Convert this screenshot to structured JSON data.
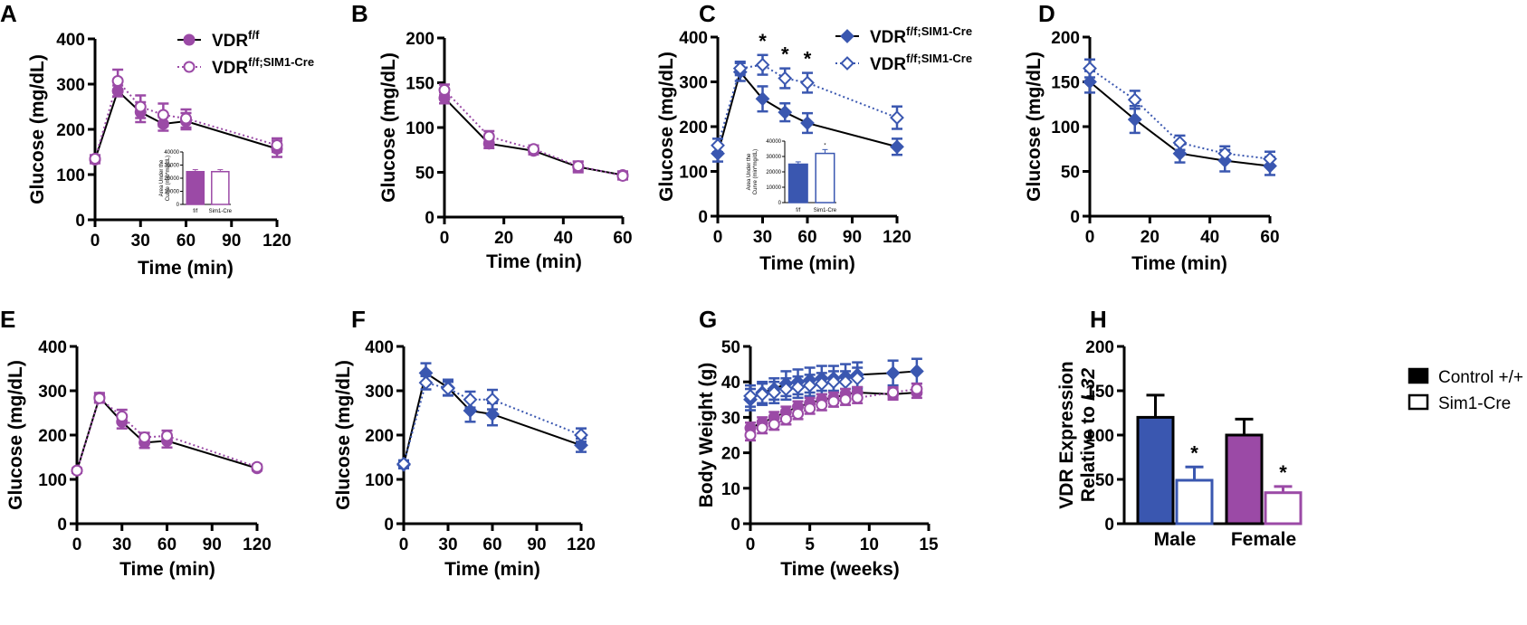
{
  "colors": {
    "blue": "#3a57b0",
    "purple": "#9b4aa6",
    "black": "#000000"
  },
  "chart_data": [
    {
      "panel": "A",
      "type": "line",
      "xlabel": "Time (min)",
      "ylabel": "Glucose (mg/dL)",
      "xlim": [
        0,
        120
      ],
      "ylim": [
        0,
        400
      ],
      "xticks": [
        0,
        30,
        60,
        90,
        120
      ],
      "yticks": [
        0,
        100,
        200,
        300,
        400
      ],
      "legend": [
        {
          "base": "VDR",
          "sup": "f/f",
          "style": "solid-filled"
        },
        {
          "base": "VDR",
          "sup": "f/f;SIM1-Cre",
          "style": "dotted-open"
        }
      ],
      "series": [
        {
          "name": "VDR f/f",
          "color": "purple",
          "style": "solid",
          "marker": "circle",
          "filled": true,
          "x": [
            0,
            15,
            30,
            45,
            60,
            120
          ],
          "y": [
            133,
            285,
            238,
            212,
            218,
            157
          ],
          "err": [
            8,
            12,
            22,
            15,
            18,
            18
          ]
        },
        {
          "name": "VDR f/f;SIM1-Cre",
          "color": "purple",
          "style": "dotted",
          "marker": "circle",
          "filled": false,
          "x": [
            0,
            15,
            30,
            45,
            60,
            120
          ],
          "y": [
            135,
            307,
            250,
            232,
            224,
            165
          ],
          "err": [
            8,
            25,
            25,
            25,
            20,
            15
          ]
        }
      ],
      "stars_x": [],
      "inset": {
        "ylabel": "Area Under the Curve (min*mg/dL)",
        "categories": [
          "f/f",
          "Sim1-Cre"
        ],
        "values": [
          25000,
          25000
        ],
        "err": [
          1500,
          1500
        ],
        "ylim": [
          0,
          40000
        ],
        "yticks": [
          "0",
          "10000",
          "20000",
          "30000",
          "40000"
        ],
        "fill": "purple",
        "stars": []
      }
    },
    {
      "panel": "B",
      "type": "line",
      "xlabel": "Time (min)",
      "ylabel": "Glucose (mg/dL)",
      "xlim": [
        0,
        60
      ],
      "ylim": [
        0,
        200
      ],
      "xticks": [
        0,
        20,
        40,
        60
      ],
      "yticks": [
        0,
        50,
        100,
        150,
        200
      ],
      "legend": [],
      "series": [
        {
          "name": "VDR f/f",
          "color": "purple",
          "style": "solid",
          "marker": "circle",
          "filled": true,
          "x": [
            0,
            15,
            30,
            45,
            60
          ],
          "y": [
            133,
            82,
            74,
            56,
            47
          ],
          "err": [
            6,
            5,
            4,
            6,
            4
          ]
        },
        {
          "name": "VDR f/f;SIM1-Cre",
          "color": "purple",
          "style": "dotted",
          "marker": "circle",
          "filled": false,
          "x": [
            0,
            15,
            30,
            45,
            60
          ],
          "y": [
            142,
            90,
            76,
            57,
            46
          ],
          "err": [
            6,
            6,
            4,
            5,
            4
          ]
        }
      ],
      "stars_x": []
    },
    {
      "panel": "C",
      "type": "line",
      "xlabel": "Time (min)",
      "ylabel": "Glucose (mg/dL)",
      "xlim": [
        0,
        120
      ],
      "ylim": [
        0,
        400
      ],
      "xticks": [
        0,
        30,
        60,
        90,
        120
      ],
      "yticks": [
        0,
        100,
        200,
        300,
        400
      ],
      "legend": [
        {
          "base": "VDR",
          "sup": "f/f;SIM1-Cre",
          "style": "solid-filled"
        },
        {
          "base": "VDR",
          "sup": "f/f;SIM1-Cre",
          "style": "dotted-open"
        }
      ],
      "series": [
        {
          "name": "VDR f/f",
          "color": "blue",
          "style": "solid",
          "marker": "diamond",
          "filled": true,
          "x": [
            0,
            15,
            30,
            45,
            60,
            120
          ],
          "y": [
            140,
            322,
            262,
            232,
            208,
            155
          ],
          "err": [
            18,
            20,
            28,
            20,
            22,
            18
          ]
        },
        {
          "name": "VDR f/f;SIM1-Cre",
          "color": "blue",
          "style": "dotted",
          "marker": "diamond",
          "filled": false,
          "x": [
            0,
            15,
            30,
            45,
            60,
            120
          ],
          "y": [
            158,
            330,
            338,
            308,
            298,
            220
          ],
          "err": [
            15,
            15,
            22,
            22,
            22,
            25
          ]
        }
      ],
      "stars_x": [
        30,
        45,
        60
      ],
      "star_label": "*",
      "inset": {
        "ylabel": "Area Under the Curve (min*mg/dL)",
        "categories": [
          "f/f",
          "Sim1-Cre"
        ],
        "values": [
          25000,
          32000
        ],
        "err": [
          1500,
          2500
        ],
        "ylim": [
          0,
          40000
        ],
        "yticks": [
          "0",
          "10000",
          "20000",
          "30000",
          "40000"
        ],
        "fill": "blue",
        "stars": [
          "",
          "*"
        ]
      }
    },
    {
      "panel": "D",
      "type": "line",
      "xlabel": "Time (min)",
      "ylabel": "Glucose (mg/dL)",
      "xlim": [
        0,
        60
      ],
      "ylim": [
        0,
        200
      ],
      "xticks": [
        0,
        20,
        40,
        60
      ],
      "yticks": [
        0,
        50,
        100,
        150,
        200
      ],
      "legend": [],
      "series": [
        {
          "name": "VDR f/f",
          "color": "blue",
          "style": "solid",
          "marker": "diamond",
          "filled": true,
          "x": [
            0,
            15,
            30,
            45,
            60
          ],
          "y": [
            150,
            108,
            70,
            62,
            56
          ],
          "err": [
            12,
            15,
            10,
            12,
            10
          ]
        },
        {
          "name": "VDR f/f;SIM1-Cre",
          "color": "blue",
          "style": "dotted",
          "marker": "diamond",
          "filled": false,
          "x": [
            0,
            15,
            30,
            45,
            60
          ],
          "y": [
            165,
            130,
            82,
            70,
            64
          ],
          "err": [
            10,
            10,
            8,
            8,
            8
          ]
        }
      ],
      "stars_x": []
    },
    {
      "panel": "E",
      "type": "line",
      "xlabel": "Time (min)",
      "ylabel": "Glucose (mg/dL)",
      "xlim": [
        0,
        120
      ],
      "ylim": [
        0,
        400
      ],
      "xticks": [
        0,
        30,
        60,
        90,
        120
      ],
      "yticks": [
        0,
        100,
        200,
        300,
        400
      ],
      "legend": [],
      "series": [
        {
          "name": "VDR f/f",
          "color": "purple",
          "style": "solid",
          "marker": "circle",
          "filled": true,
          "x": [
            0,
            15,
            30,
            45,
            60,
            120
          ],
          "y": [
            120,
            285,
            230,
            183,
            187,
            125
          ],
          "err": [
            5,
            10,
            15,
            12,
            15,
            5
          ]
        },
        {
          "name": "VDR f/f;SIM1-Cre",
          "color": "purple",
          "style": "dotted",
          "marker": "circle",
          "filled": false,
          "x": [
            0,
            15,
            30,
            45,
            60,
            120
          ],
          "y": [
            120,
            283,
            242,
            195,
            198,
            128
          ],
          "err": [
            5,
            10,
            15,
            10,
            12,
            5
          ]
        }
      ],
      "stars_x": []
    },
    {
      "panel": "F",
      "type": "line",
      "xlabel": "Time (min)",
      "ylabel": "Glucose (mg/dL)",
      "xlim": [
        0,
        120
      ],
      "ylim": [
        0,
        400
      ],
      "xticks": [
        0,
        30,
        60,
        90,
        120
      ],
      "yticks": [
        0,
        100,
        200,
        300,
        400
      ],
      "legend": [],
      "series": [
        {
          "name": "VDR f/f",
          "color": "blue",
          "style": "solid",
          "marker": "diamond",
          "filled": true,
          "x": [
            0,
            15,
            30,
            45,
            60,
            120
          ],
          "y": [
            133,
            340,
            307,
            255,
            247,
            177
          ],
          "err": [
            8,
            22,
            18,
            25,
            25,
            15
          ]
        },
        {
          "name": "VDR f/f;SIM1-Cre",
          "color": "blue",
          "style": "dotted",
          "marker": "diamond",
          "filled": false,
          "x": [
            0,
            15,
            30,
            45,
            60,
            120
          ],
          "y": [
            135,
            318,
            305,
            280,
            280,
            200
          ],
          "err": [
            8,
            15,
            15,
            18,
            22,
            15
          ]
        }
      ],
      "stars_x": []
    },
    {
      "panel": "G",
      "type": "line",
      "xlabel": "Time (weeks)",
      "ylabel": "Body Weight (g)",
      "xlim": [
        0,
        15
      ],
      "ylim": [
        0,
        50
      ],
      "xticks": [
        0,
        5,
        10,
        15
      ],
      "yticks": [
        0,
        10,
        20,
        30,
        40,
        50
      ],
      "legend": [],
      "series": [
        {
          "name": "Male VDR f/f",
          "color": "blue",
          "style": "solid",
          "marker": "diamond",
          "filled": true,
          "x": [
            0,
            1,
            2,
            3,
            4,
            5,
            6,
            7,
            8,
            9,
            12,
            14
          ],
          "y": [
            35,
            37,
            38,
            39.5,
            40,
            40.5,
            41,
            41,
            41.5,
            42,
            42.5,
            43
          ],
          "err": [
            3,
            3,
            3,
            3.5,
            3.5,
            3.5,
            3.5,
            3.5,
            3.5,
            3.5,
            3.5,
            3.5
          ]
        },
        {
          "name": "Male VDR f/f;SIM1-Cre",
          "color": "blue",
          "style": "dotted",
          "marker": "diamond",
          "filled": false,
          "x": [
            0,
            1,
            2,
            3,
            4,
            5,
            6,
            7,
            8,
            9
          ],
          "y": [
            36,
            36.5,
            37,
            38,
            38.5,
            39,
            39.5,
            40,
            40,
            41
          ],
          "err": [
            3,
            3,
            3,
            3,
            3,
            3,
            3,
            3,
            3,
            3
          ]
        },
        {
          "name": "Female VDR f/f",
          "color": "purple",
          "style": "solid",
          "marker": "circle",
          "filled": true,
          "x": [
            0,
            1,
            2,
            3,
            4,
            5,
            6,
            7,
            8,
            9,
            12,
            14
          ],
          "y": [
            27,
            28.5,
            30,
            31.5,
            33,
            34,
            35,
            35.5,
            36.5,
            37,
            36.5,
            37
          ],
          "err": [
            1.5,
            1.5,
            1.5,
            1.5,
            1.5,
            1.5,
            1.5,
            1.5,
            1.5,
            1.5,
            1.5,
            1.5
          ]
        },
        {
          "name": "Female VDR f/f;SIM1-Cre",
          "color": "purple",
          "style": "dotted",
          "marker": "circle",
          "filled": false,
          "x": [
            0,
            1,
            2,
            3,
            4,
            5,
            6,
            7,
            8,
            9,
            12,
            14
          ],
          "y": [
            25,
            27,
            28,
            29.5,
            31,
            32.5,
            33.5,
            34.5,
            35,
            35.5,
            37,
            38
          ],
          "err": [
            1.5,
            1.5,
            1.5,
            1.5,
            1.5,
            1.5,
            1.5,
            1.5,
            1.5,
            1.5,
            1.5,
            1.5
          ]
        }
      ],
      "stars_x": []
    },
    {
      "panel": "H",
      "type": "bar",
      "ylabel_line1": "VDR Expression",
      "ylabel_line2_prefix": "Relative to ",
      "ylabel_line2_italic": "L32",
      "ylim": [
        0,
        200
      ],
      "yticks": [
        0,
        50,
        100,
        150,
        200
      ],
      "categories": [
        "Male",
        "Female"
      ],
      "bars": [
        {
          "group": "Male",
          "series": "Control +/+",
          "value": 120,
          "err": 25,
          "fill": "blue",
          "star": ""
        },
        {
          "group": "Male",
          "series": "Sim1-Cre",
          "value": 49,
          "err": 15,
          "fill": "none-blue",
          "star": "*"
        },
        {
          "group": "Female",
          "series": "Control +/+",
          "value": 100,
          "err": 18,
          "fill": "purple",
          "star": ""
        },
        {
          "group": "Female",
          "series": "Sim1-Cre",
          "value": 35,
          "err": 7,
          "fill": "none-purple",
          "star": "*"
        }
      ],
      "legend": [
        {
          "label": "Control +/+",
          "filled": true
        },
        {
          "label": "Sim1-Cre",
          "filled": false
        }
      ]
    }
  ]
}
